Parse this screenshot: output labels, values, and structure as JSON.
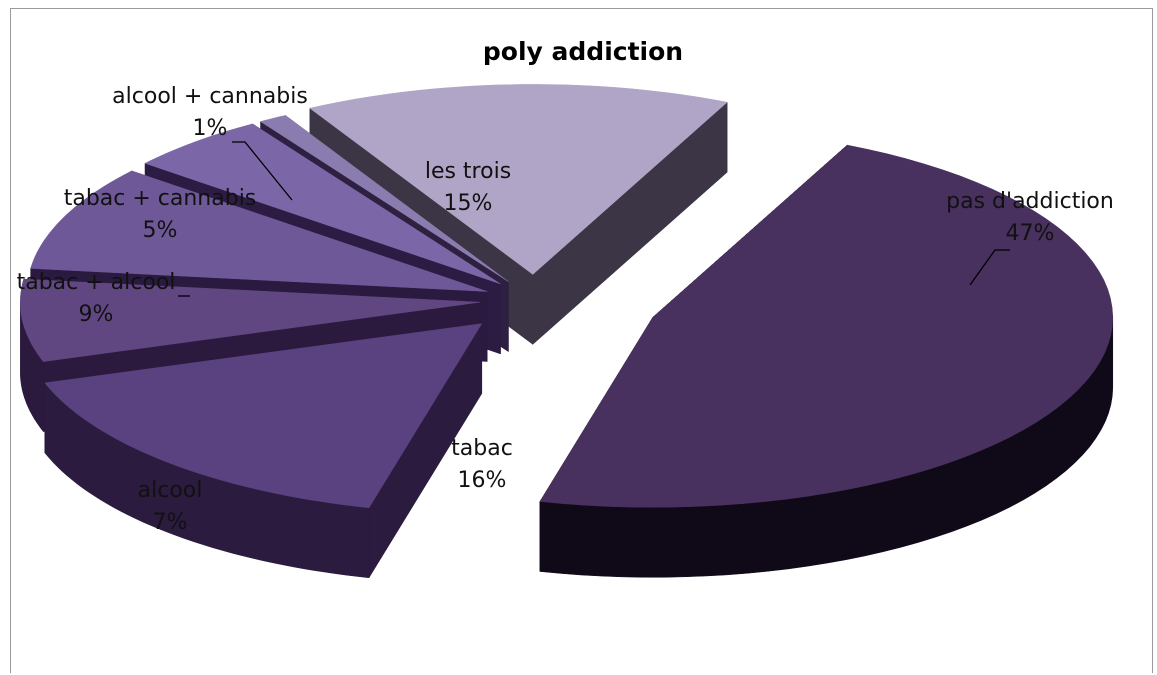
{
  "chart_data": {
    "type": "pie",
    "title": "poly addiction",
    "slices": [
      {
        "label": "pas d'addiction",
        "value": 47,
        "value_label": "47%",
        "top": "#48305f",
        "side": "#100a18"
      },
      {
        "label": "tabac",
        "value": 16,
        "value_label": "16%",
        "top": "#5a4180",
        "side": "#2a1b3f"
      },
      {
        "label": "alcool",
        "value": 7,
        "value_label": "7%",
        "top": "#614782",
        "side": "#2b1a3e"
      },
      {
        "label": "tabac + alcool",
        "value": 9,
        "value_label": "9%",
        "top": "#6f5898",
        "side": "#2a1a40"
      },
      {
        "label": "tabac + cannabis",
        "value": 5,
        "value_label": "5%",
        "top": "#7b67a8",
        "side": "#2c1c44"
      },
      {
        "label": "alcool + cannabis",
        "value": 1,
        "value_label": "1%",
        "top": "#8b7cb0",
        "side": "#2e2040"
      },
      {
        "label": "les trois",
        "value": 15,
        "value_label": "15%",
        "top": "#b0a5c6",
        "side": "#3b3545"
      }
    ],
    "legend": "none",
    "style": "3d-exploded"
  }
}
